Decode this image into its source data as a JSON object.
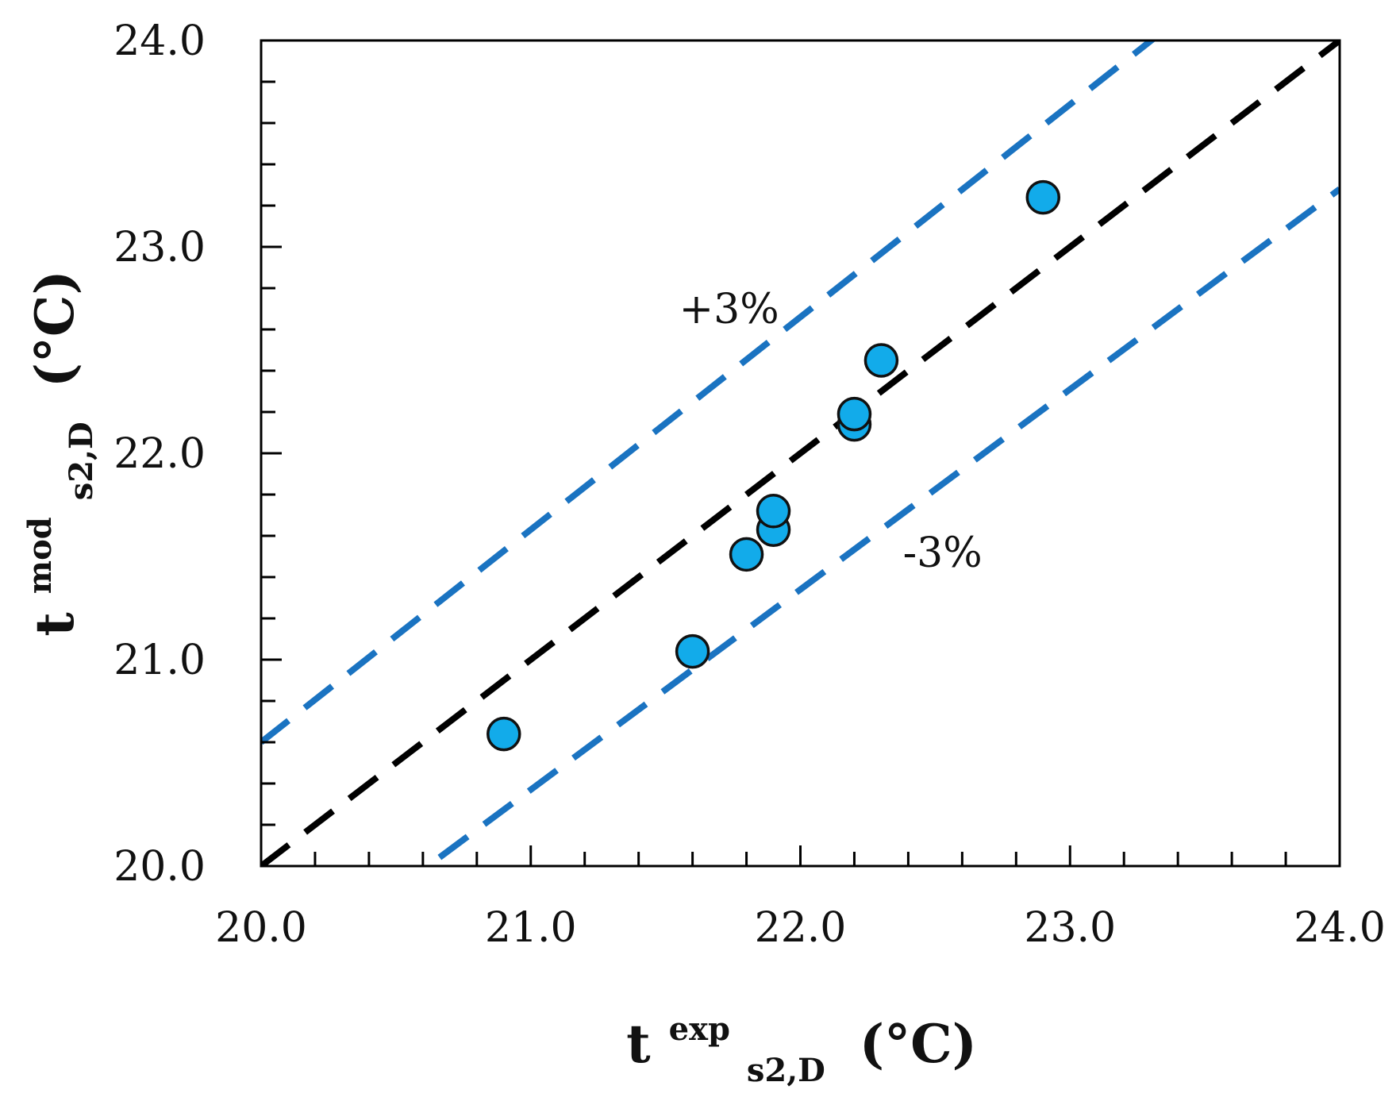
{
  "chart_data": {
    "type": "scatter",
    "title": "",
    "xlabel": {
      "main": "t",
      "sup": "exp",
      "sub": "s2,D",
      "unit": "(°C)"
    },
    "ylabel": {
      "main": "t",
      "sup": "mod",
      "sub": "s2,D",
      "unit": "(°C)"
    },
    "xlim": [
      20.0,
      24.0
    ],
    "ylim": [
      20.0,
      24.0
    ],
    "x_major_ticks": [
      20.0,
      21.0,
      22.0,
      23.0,
      24.0
    ],
    "y_major_ticks": [
      20.0,
      21.0,
      22.0,
      23.0,
      24.0
    ],
    "x_tick_labels": [
      "20.0",
      "21.0",
      "22.0",
      "23.0",
      "24.0"
    ],
    "y_tick_labels": [
      "20.0",
      "21.0",
      "22.0",
      "23.0",
      "24.0"
    ],
    "minor_tick_step": 0.2,
    "grid": false,
    "series": [
      {
        "name": "data",
        "marker_color": "#12ABEA",
        "x": [
          20.9,
          21.6,
          21.8,
          21.9,
          21.9,
          22.2,
          22.2,
          22.3,
          22.9
        ],
        "y": [
          20.64,
          21.04,
          21.51,
          21.63,
          21.72,
          22.14,
          22.19,
          22.45,
          23.24
        ]
      }
    ],
    "reference_lines": [
      {
        "name": "identity",
        "slope": 1.0,
        "color": "#000000",
        "label": ""
      },
      {
        "name": "plus-3-percent",
        "slope": 1.03,
        "color": "#1A73C1",
        "label": "+3%"
      },
      {
        "name": "minus-3-percent",
        "slope": 0.97,
        "color": "#1A73C1",
        "label": "-3%"
      }
    ],
    "annotations": [
      {
        "text": "+3%",
        "x": 21.55,
        "y": 22.63
      },
      {
        "text": "-3%",
        "x": 22.38,
        "y": 21.45
      }
    ]
  }
}
